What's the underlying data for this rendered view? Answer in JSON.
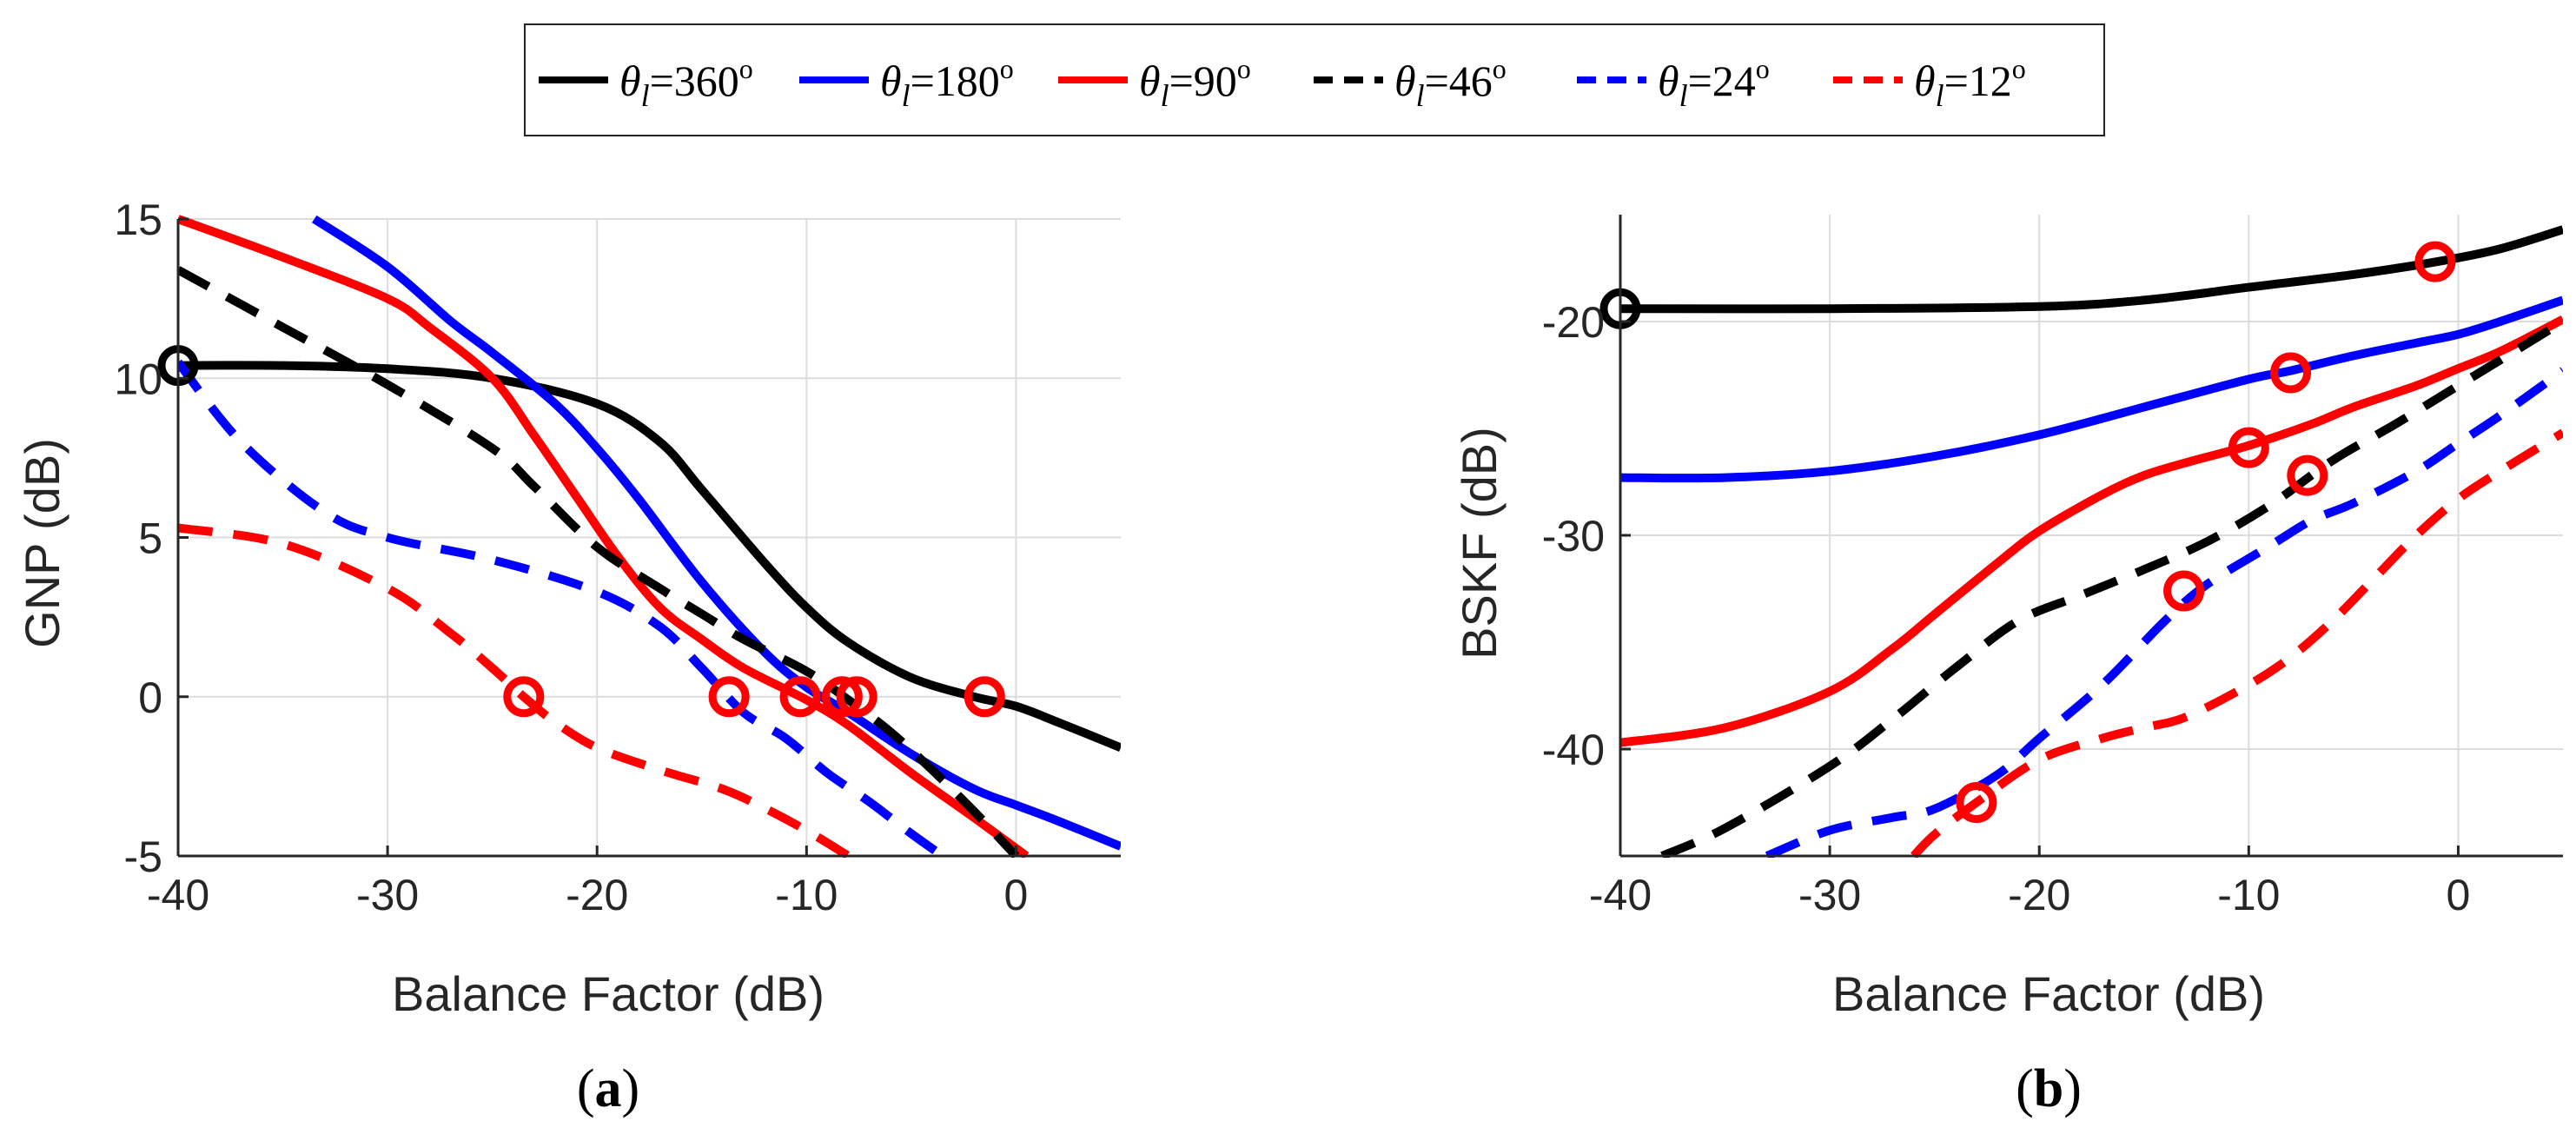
{
  "legend": {
    "entries": [
      {
        "label": "θl=360º",
        "symbol": "θ",
        "sub": "l",
        "value": "=360",
        "unit": "o",
        "color": "#000000",
        "style": "solid"
      },
      {
        "label": "θl=180º",
        "symbol": "θ",
        "sub": "l",
        "value": "=180",
        "unit": "o",
        "color": "#0000ff",
        "style": "solid"
      },
      {
        "label": "θl=90º",
        "symbol": "θ",
        "sub": "l",
        "value": "=90",
        "unit": "o",
        "color": "#ff0000",
        "style": "solid"
      },
      {
        "label": "θl=46º",
        "symbol": "θ",
        "sub": "l",
        "value": "=46",
        "unit": "o",
        "color": "#000000",
        "style": "dashed"
      },
      {
        "label": "θl=24º",
        "symbol": "θ",
        "sub": "l",
        "value": "=24",
        "unit": "o",
        "color": "#0000ff",
        "style": "dashed"
      },
      {
        "label": "θl=12º",
        "symbol": "θ",
        "sub": "l",
        "value": "=12",
        "unit": "o",
        "color": "#ff0000",
        "style": "dashed"
      }
    ]
  },
  "chart_data": [
    {
      "id": "a",
      "type": "line",
      "caption": "(a)",
      "caption_letter": "a",
      "xlabel": "Balance Factor (dB)",
      "ylabel": "GNP (dB)",
      "xlim": [
        -40,
        5
      ],
      "ylim": [
        -5,
        15
      ],
      "xticks": [
        -40,
        -30,
        -20,
        -10,
        0
      ],
      "yticks": [
        -5,
        0,
        5,
        10,
        15
      ],
      "xtick_labels": [
        "-40",
        "-30",
        "-20",
        "-10",
        "0"
      ],
      "ytick_labels": [
        "-5",
        "0",
        "5",
        "10",
        "15"
      ],
      "grid": true,
      "series": [
        {
          "name": "θl=360º",
          "color": "#000000",
          "style": "solid",
          "x": [
            -40,
            -35,
            -30,
            -25,
            -20,
            -17,
            -15,
            -12,
            -10,
            -8,
            -5,
            -2,
            0,
            2,
            5
          ],
          "y": [
            10.4,
            10.4,
            10.3,
            10,
            9.2,
            8,
            6.5,
            4.2,
            2.8,
            1.7,
            0.6,
            0,
            -0.3,
            -0.8,
            -1.6
          ]
        },
        {
          "name": "θl=180º",
          "color": "#0000ff",
          "style": "solid",
          "x": [
            -33.5,
            -30,
            -27,
            -25,
            -22,
            -20,
            -18,
            -15,
            -12,
            -10,
            -8,
            -5,
            -2,
            0,
            2,
            5
          ],
          "y": [
            15,
            13.5,
            11.8,
            10.8,
            9.2,
            7.8,
            6.2,
            3.6,
            1.4,
            0.3,
            -0.5,
            -1.8,
            -2.9,
            -3.4,
            -3.9,
            -4.7
          ]
        },
        {
          "name": "θl=90º",
          "color": "#ff0000",
          "style": "solid",
          "x": [
            -40,
            -35,
            -30,
            -28,
            -25,
            -23,
            -21,
            -19,
            -17,
            -15,
            -13,
            -10,
            -8,
            -5,
            -2,
            0.5
          ],
          "y": [
            15,
            13.8,
            12.5,
            11.6,
            10,
            8.2,
            6.3,
            4.4,
            2.8,
            1.8,
            0.9,
            -0.1,
            -0.9,
            -2.4,
            -3.8,
            -5
          ]
        },
        {
          "name": "θl=46º",
          "color": "#000000",
          "style": "dashed",
          "x": [
            -40,
            -35,
            -30,
            -25,
            -23,
            -20,
            -17,
            -15,
            -13,
            -10,
            -8,
            -6,
            -4,
            -2,
            0
          ],
          "y": [
            13.4,
            11.6,
            9.8,
            7.8,
            6.6,
            4.7,
            3.4,
            2.6,
            1.8,
            0.8,
            -0.1,
            -1.1,
            -2.3,
            -3.6,
            -5
          ]
        },
        {
          "name": "θl=24º",
          "color": "#0000ff",
          "style": "dashed",
          "x": [
            -40,
            -37,
            -33,
            -30,
            -25,
            -20,
            -17,
            -15,
            -13,
            -11,
            -9,
            -7,
            -5,
            -3.5
          ],
          "y": [
            10.5,
            8,
            5.8,
            5,
            4.3,
            3.3,
            2.2,
            0.9,
            -0.5,
            -1.3,
            -2.4,
            -3.3,
            -4.3,
            -5
          ]
        },
        {
          "name": "θl=12º",
          "color": "#ff0000",
          "style": "dashed",
          "x": [
            -40,
            -35,
            -30,
            -27,
            -25,
            -23.5,
            -22,
            -20,
            -17,
            -14,
            -12,
            -10,
            -8
          ],
          "y": [
            5.3,
            4.8,
            3.4,
            2,
            0.9,
            0,
            -0.8,
            -1.6,
            -2.3,
            -2.9,
            -3.5,
            -4.2,
            -5
          ]
        }
      ],
      "markers": [
        {
          "x": -40,
          "y": 10.4,
          "color": "#000000"
        },
        {
          "x": -23.5,
          "y": 0,
          "color": "#ff0000"
        },
        {
          "x": -13.7,
          "y": 0,
          "color": "#ff0000"
        },
        {
          "x": -10.3,
          "y": 0,
          "color": "#ff0000"
        },
        {
          "x": -8.3,
          "y": 0,
          "color": "#ff0000"
        },
        {
          "x": -7.6,
          "y": 0,
          "color": "#ff0000"
        },
        {
          "x": -1.5,
          "y": 0,
          "color": "#ff0000"
        }
      ]
    },
    {
      "id": "b",
      "type": "line",
      "caption": "(b)",
      "caption_letter": "b",
      "xlabel": "Balance Factor (dB)",
      "ylabel": "BSKF (dB)",
      "xlim": [
        -40,
        5
      ],
      "ylim": [
        -45,
        -15
      ],
      "xticks": [
        -40,
        -30,
        -20,
        -10,
        0
      ],
      "yticks": [
        -40,
        -30,
        -20
      ],
      "xtick_labels": [
        "-40",
        "-30",
        "-20",
        "-10",
        "0"
      ],
      "ytick_labels": [
        "-40",
        "-30",
        "-20"
      ],
      "grid": true,
      "series": [
        {
          "name": "θl=360º",
          "color": "#000000",
          "style": "solid",
          "x": [
            -40,
            -30,
            -20,
            -15,
            -10,
            -5,
            -1,
            2,
            5
          ],
          "y": [
            -19.4,
            -19.4,
            -19.3,
            -19,
            -18.4,
            -17.8,
            -17.2,
            -16.6,
            -15.7
          ]
        },
        {
          "name": "θl=180º",
          "color": "#0000ff",
          "style": "solid",
          "x": [
            -40,
            -35,
            -30,
            -25,
            -20,
            -15,
            -10,
            -8,
            -5,
            -2,
            0,
            2,
            5
          ],
          "y": [
            -27.3,
            -27.3,
            -27,
            -26.3,
            -25.3,
            -24,
            -22.7,
            -22.3,
            -21.6,
            -21,
            -20.6,
            -20,
            -19
          ]
        },
        {
          "name": "θl=90º",
          "color": "#ff0000",
          "style": "solid",
          "x": [
            -40,
            -35,
            -30,
            -27,
            -25,
            -22,
            -20,
            -17,
            -15,
            -13,
            -10,
            -7,
            -5,
            -2,
            0,
            2,
            5
          ],
          "y": [
            -39.7,
            -39,
            -37.3,
            -35.3,
            -33.7,
            -31.3,
            -29.8,
            -28.1,
            -27.2,
            -26.6,
            -25.8,
            -24.8,
            -24,
            -23,
            -22.2,
            -21.4,
            -19.9
          ]
        },
        {
          "name": "θl=46º",
          "color": "#000000",
          "style": "dashed",
          "x": [
            -38,
            -35,
            -30,
            -27,
            -24,
            -21,
            -18,
            -15,
            -12,
            -9,
            -6,
            -3,
            0,
            2,
            5
          ],
          "y": [
            -45,
            -43.7,
            -40.8,
            -38.6,
            -36.2,
            -34,
            -32.8,
            -31.6,
            -30.3,
            -28.6,
            -26.5,
            -24.8,
            -23,
            -21.8,
            -20
          ]
        },
        {
          "name": "θl=24º",
          "color": "#0000ff",
          "style": "dashed",
          "x": [
            -33,
            -30,
            -27,
            -25,
            -22,
            -20,
            -17,
            -14,
            -12,
            -9,
            -7,
            -5,
            -2,
            0,
            2,
            5
          ],
          "y": [
            -45,
            -43.8,
            -43.2,
            -42.8,
            -41.2,
            -39.5,
            -37,
            -34,
            -32.3,
            -30.5,
            -29.3,
            -28.5,
            -27,
            -25.7,
            -24.4,
            -22.3
          ]
        },
        {
          "name": "θl=12º",
          "color": "#ff0000",
          "style": "dashed",
          "x": [
            -26,
            -25,
            -23,
            -20,
            -17,
            -15,
            -13,
            -10,
            -8,
            -6,
            -4,
            -2,
            0,
            2,
            5
          ],
          "y": [
            -45,
            -44,
            -42.5,
            -40.5,
            -39.5,
            -39,
            -38.5,
            -37,
            -35.7,
            -34,
            -32,
            -30,
            -28.3,
            -27,
            -25.2
          ]
        }
      ],
      "markers": [
        {
          "x": -40,
          "y": -19.4,
          "color": "#000000"
        },
        {
          "x": -1.1,
          "y": -17.2,
          "color": "#ff0000"
        },
        {
          "x": -8,
          "y": -22.4,
          "color": "#ff0000"
        },
        {
          "x": -10,
          "y": -25.9,
          "color": "#ff0000"
        },
        {
          "x": -7.2,
          "y": -27.2,
          "color": "#ff0000"
        },
        {
          "x": -13.1,
          "y": -32.6,
          "color": "#ff0000"
        },
        {
          "x": -23,
          "y": -42.5,
          "color": "#ff0000"
        }
      ]
    }
  ]
}
